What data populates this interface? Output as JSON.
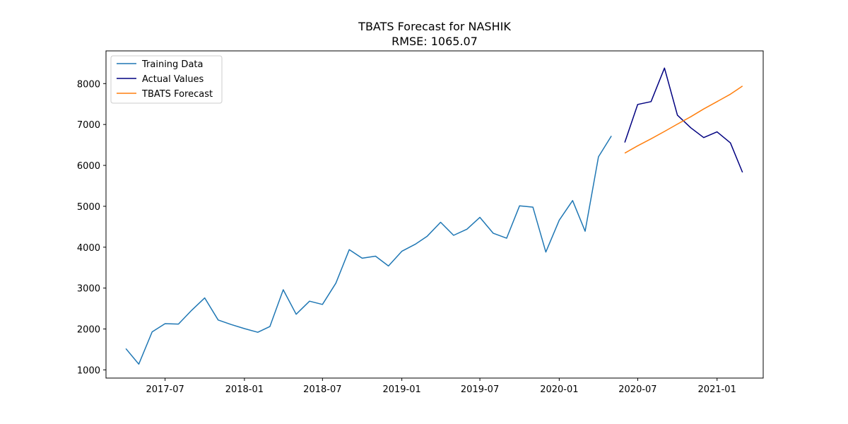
{
  "chart_data": {
    "type": "line",
    "title": "TBATS Forecast for NASHIK",
    "subtitle": "RMSE: 1065.07",
    "xlabel": "",
    "ylabel": "",
    "xlim": [
      "2017-02-14",
      "2021-04-18"
    ],
    "ylim": [
      800,
      8800
    ],
    "grid": false,
    "legend_position": "top-left",
    "x_ticks": [
      "2017-07",
      "2018-01",
      "2018-07",
      "2019-01",
      "2019-07",
      "2020-01",
      "2020-07",
      "2021-01"
    ],
    "y_ticks": [
      1000,
      2000,
      3000,
      4000,
      5000,
      6000,
      7000,
      8000
    ],
    "series": [
      {
        "name": "Training Data",
        "color": "#1f77b4",
        "x": [
          "2017-04-01",
          "2017-05-01",
          "2017-06-01",
          "2017-07-01",
          "2017-08-01",
          "2017-09-01",
          "2017-10-01",
          "2017-11-01",
          "2017-12-01",
          "2018-01-01",
          "2018-02-01",
          "2018-03-01",
          "2018-04-01",
          "2018-05-01",
          "2018-06-01",
          "2018-07-01",
          "2018-08-01",
          "2018-09-01",
          "2018-10-01",
          "2018-11-01",
          "2018-12-01",
          "2019-01-01",
          "2019-02-01",
          "2019-03-01",
          "2019-04-01",
          "2019-05-01",
          "2019-06-01",
          "2019-07-01",
          "2019-08-01",
          "2019-09-01",
          "2019-10-01",
          "2019-11-01",
          "2019-12-01",
          "2020-01-01",
          "2020-02-01",
          "2020-03-01",
          "2020-04-01",
          "2020-05-01"
        ],
        "values": [
          1520,
          1140,
          1930,
          2130,
          2120,
          2460,
          2760,
          2220,
          2110,
          2010,
          1920,
          2060,
          2960,
          2360,
          2680,
          2600,
          3120,
          3940,
          3730,
          3780,
          3540,
          3900,
          4070,
          4270,
          4610,
          4290,
          4440,
          4730,
          4340,
          4220,
          5010,
          4980,
          3880,
          4660,
          5140,
          4390,
          6210,
          6720
        ]
      },
      {
        "name": "Actual Values",
        "color": "#000080",
        "x": [
          "2020-06-01",
          "2020-07-01",
          "2020-08-01",
          "2020-09-01",
          "2020-10-01",
          "2020-11-01",
          "2020-12-01",
          "2021-01-01",
          "2021-02-01",
          "2021-03-01"
        ],
        "values": [
          6560,
          7490,
          7560,
          8380,
          7230,
          6920,
          6680,
          6820,
          6550,
          5830
        ]
      },
      {
        "name": "TBATS Forecast",
        "color": "#ff7f0e",
        "x": [
          "2020-06-01",
          "2020-07-01",
          "2020-08-01",
          "2020-09-01",
          "2020-10-01",
          "2020-11-01",
          "2020-12-01",
          "2021-01-01",
          "2021-02-01",
          "2021-03-01"
        ],
        "values": [
          6300,
          6480,
          6650,
          6830,
          7010,
          7190,
          7380,
          7560,
          7740,
          7940
        ]
      }
    ]
  }
}
